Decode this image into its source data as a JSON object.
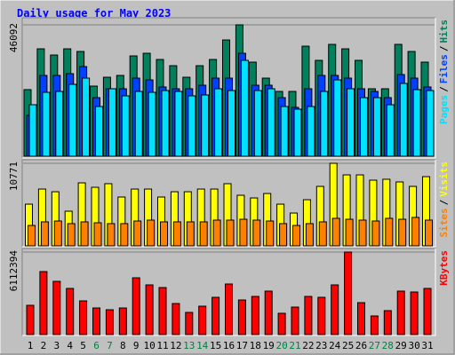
{
  "chart_data": [
    {
      "type": "bar",
      "title": "Daily usage for May 2023",
      "legend_separator": "/",
      "series": [
        {
          "name": "Hits",
          "color": "#00805c",
          "values": [
            23360,
            37680,
            35500,
            37680,
            36750,
            24600,
            27710,
            28340,
            35190,
            36120,
            33940,
            31760,
            27710,
            31760,
            33940,
            40790,
            46092,
            33010,
            27400,
            22730,
            22730,
            38610,
            33630,
            39240,
            37680,
            33630,
            23670,
            23670,
            39240,
            36750,
            33010
          ]
        },
        {
          "name": "Files",
          "color": "#0040ff",
          "values": [
            14320,
            28340,
            28340,
            28960,
            31450,
            20550,
            23670,
            23670,
            27400,
            26780,
            24290,
            23670,
            23670,
            24910,
            27400,
            27400,
            36120,
            24910,
            24910,
            20550,
            17130,
            23670,
            28340,
            28340,
            27400,
            23670,
            22730,
            20550,
            28650,
            27400,
            24290
          ]
        },
        {
          "name": "Pages",
          "color": "#00e0ff",
          "values": [
            18060,
            22420,
            22730,
            25220,
            27400,
            17440,
            23670,
            21180,
            22730,
            22420,
            23040,
            22730,
            21180,
            21490,
            23670,
            23040,
            33630,
            23040,
            23670,
            17440,
            16500,
            17440,
            22730,
            26780,
            23670,
            20550,
            20550,
            18060,
            25530,
            23360,
            23040
          ]
        }
      ],
      "ylim": [
        0,
        46092
      ],
      "yticks": [
        46092
      ]
    },
    {
      "type": "bar",
      "legend_separator": "/",
      "series": [
        {
          "name": "Visits",
          "color": "#ffff00",
          "values": [
            5440,
            7410,
            7060,
            4520,
            8220,
            7640,
            8110,
            6370,
            7410,
            7410,
            6370,
            7060,
            7060,
            7410,
            7410,
            8110,
            6600,
            6250,
            6830,
            5440,
            4280,
            6020,
            7760,
            10771,
            9260,
            9260,
            8570,
            8690,
            8340,
            7760,
            9030
          ]
        },
        {
          "name": "Sites",
          "color": "#ff8000",
          "values": [
            2660,
            3130,
            3240,
            2900,
            3130,
            3010,
            2900,
            2900,
            3240,
            3360,
            3130,
            3130,
            3130,
            3130,
            3360,
            3360,
            3470,
            3360,
            3240,
            2900,
            2660,
            2900,
            3130,
            3590,
            3470,
            3360,
            3240,
            3590,
            3470,
            3710,
            3360
          ]
        }
      ],
      "ylim": [
        0,
        10771
      ],
      "yticks": [
        10771
      ]
    },
    {
      "type": "bar",
      "series": [
        {
          "name": "KBytes",
          "color": "#ff0000",
          "values": [
            2168900,
            4666500,
            3943500,
            3417700,
            2497500,
            1971800,
            1840300,
            1971800,
            4206400,
            3680600,
            3483400,
            2300400,
            1643100,
            2103200,
            2760500,
            3746300,
            2563300,
            2826200,
            3220500,
            1577400,
            2037500,
            2826200,
            2760500,
            3680600,
            6112394,
            2366100,
            1380200,
            1774600,
            3220500,
            3154800,
            3417700
          ]
        }
      ],
      "ylim": [
        0,
        6112394
      ],
      "yticks": [
        6112394
      ],
      "categories": [
        "1",
        "2",
        "3",
        "4",
        "5",
        "6",
        "7",
        "8",
        "9",
        "10",
        "11",
        "12",
        "13",
        "14",
        "15",
        "16",
        "17",
        "18",
        "19",
        "20",
        "21",
        "22",
        "23",
        "24",
        "25",
        "26",
        "27",
        "28",
        "29",
        "30",
        "31"
      ],
      "category_colors": [
        "#000",
        "#000",
        "#000",
        "#000",
        "#000",
        "#008040",
        "#008040",
        "#000",
        "#000",
        "#000",
        "#000",
        "#000",
        "#008040",
        "#008040",
        "#000",
        "#000",
        "#000",
        "#000",
        "#000",
        "#008040",
        "#008040",
        "#000",
        "#000",
        "#000",
        "#000",
        "#000",
        "#008040",
        "#008040",
        "#000",
        "#000",
        "#000"
      ]
    }
  ]
}
